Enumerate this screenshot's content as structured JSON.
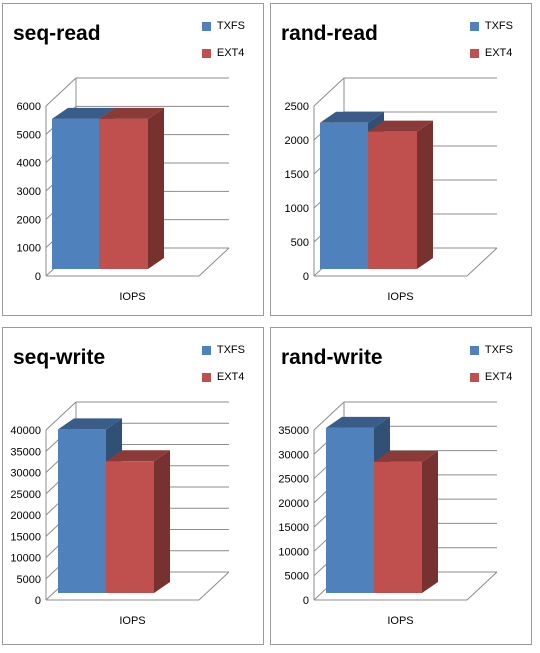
{
  "chart_data": [
    {
      "type": "bar",
      "title": "seq-read",
      "categories": [
        "IOPS"
      ],
      "series": [
        {
          "name": "TXFS",
          "values": [
            5300
          ],
          "color": "#4F81BD"
        },
        {
          "name": "EXT4",
          "values": [
            5300
          ],
          "color": "#C0504D"
        }
      ],
      "ylim": [
        0,
        6000
      ],
      "yticks": [
        "0",
        "1000",
        "2000",
        "3000",
        "4000",
        "5000",
        "6000"
      ],
      "grid": true,
      "legend": "top-right"
    },
    {
      "type": "bar",
      "title": "rand-read",
      "categories": [
        "IOPS"
      ],
      "series": [
        {
          "name": "TXFS",
          "values": [
            2150
          ],
          "color": "#4F81BD"
        },
        {
          "name": "EXT4",
          "values": [
            2020
          ],
          "color": "#C0504D"
        }
      ],
      "ylim": [
        0,
        2500
      ],
      "yticks": [
        "0",
        "500",
        "1000",
        "1500",
        "2000",
        "2500"
      ],
      "grid": true,
      "legend": "top-right"
    },
    {
      "type": "bar",
      "title": "seq-write",
      "categories": [
        "IOPS"
      ],
      "series": [
        {
          "name": "TXFS",
          "values": [
            38500
          ],
          "color": "#4F81BD"
        },
        {
          "name": "EXT4",
          "values": [
            31000
          ],
          "color": "#C0504D"
        }
      ],
      "ylim": [
        0,
        40000
      ],
      "yticks": [
        "0",
        "5000",
        "10000",
        "15000",
        "20000",
        "25000",
        "30000",
        "35000",
        "40000"
      ],
      "grid": true,
      "legend": "top-right"
    },
    {
      "type": "bar",
      "title": "rand-write",
      "categories": [
        "IOPS"
      ],
      "series": [
        {
          "name": "TXFS",
          "values": [
            34000
          ],
          "color": "#4F81BD"
        },
        {
          "name": "EXT4",
          "values": [
            27000
          ],
          "color": "#C0504D"
        }
      ],
      "ylim": [
        0,
        35000
      ],
      "yticks": [
        "0",
        "5000",
        "10000",
        "15000",
        "20000",
        "25000",
        "30000",
        "35000"
      ],
      "grid": true,
      "legend": "top-right"
    }
  ]
}
